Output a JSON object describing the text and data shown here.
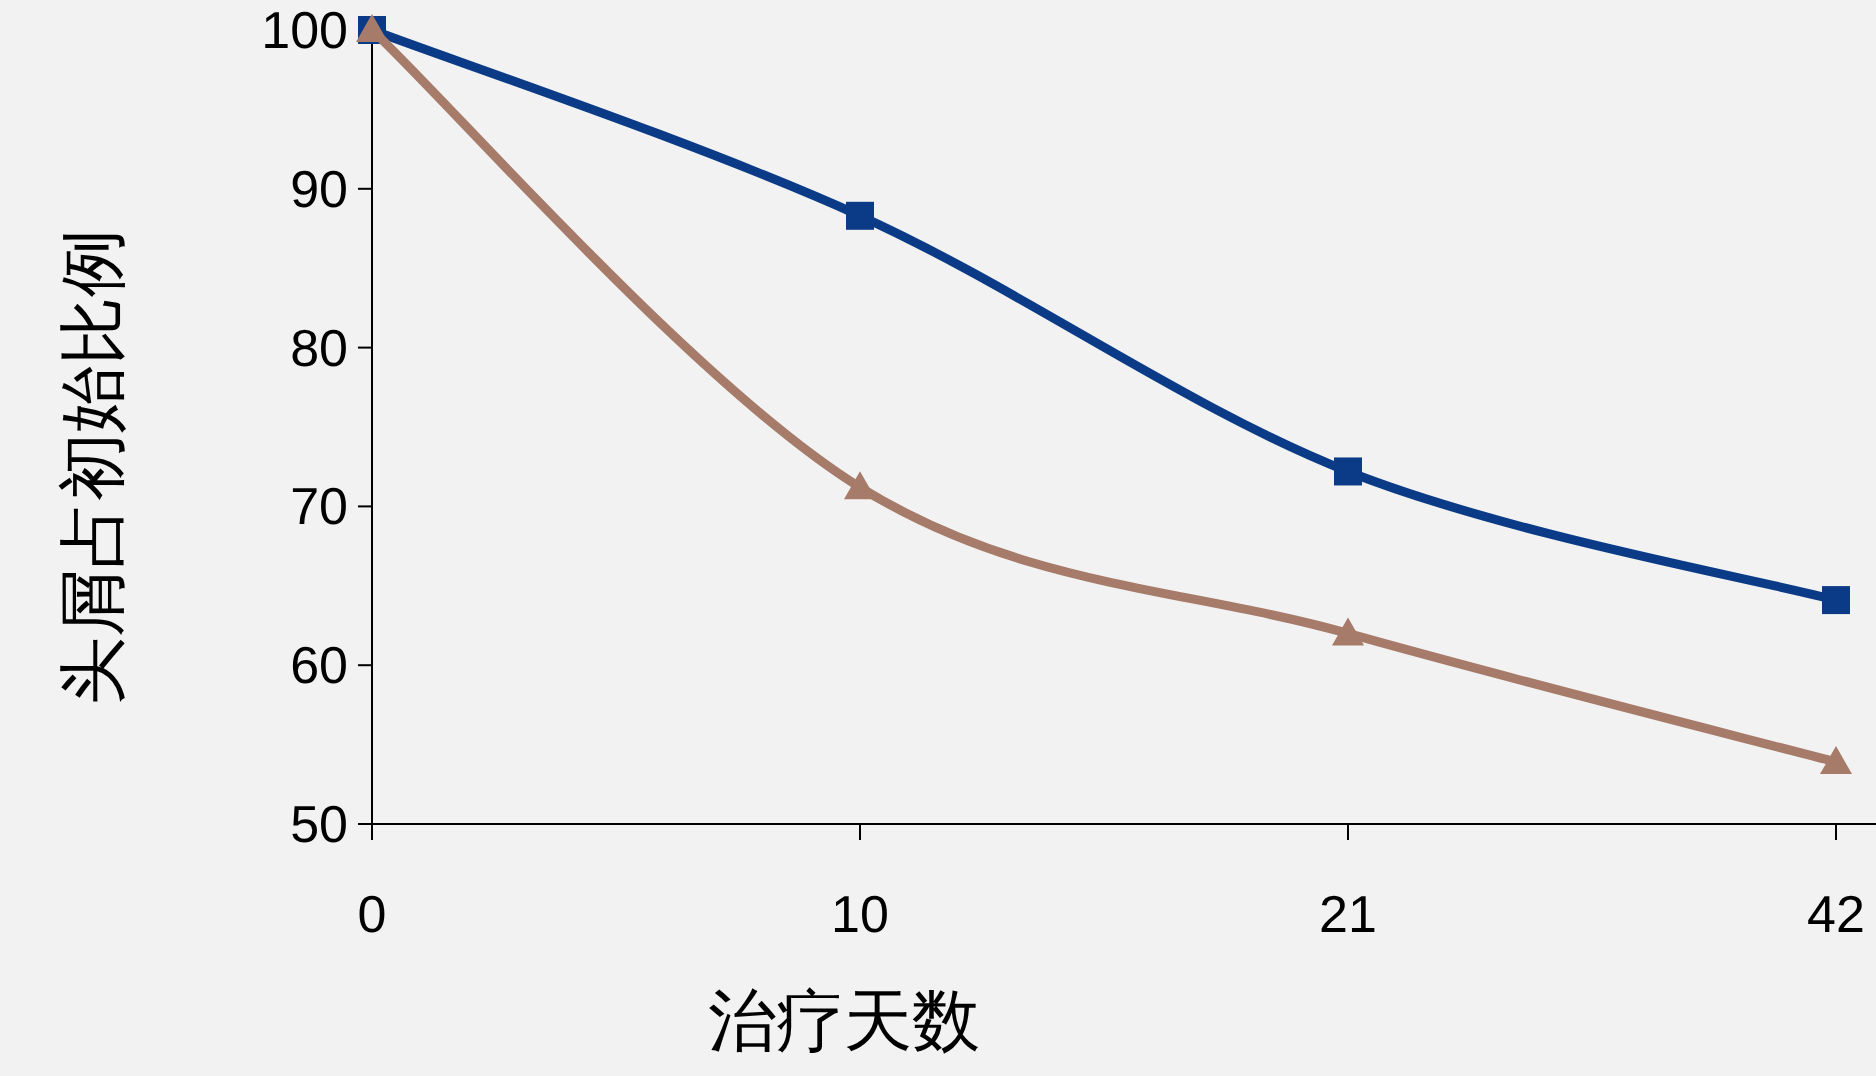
{
  "chart_data": {
    "type": "line",
    "xlabel": "治疗天数",
    "ylabel": "头屑占初始比例",
    "categories": [
      "0",
      "10",
      "21",
      "42"
    ],
    "ylim": [
      50,
      100
    ],
    "yticks": [
      50,
      60,
      70,
      80,
      90,
      100
    ],
    "grid": false,
    "series": [
      {
        "color": "#0b3b86",
        "marker": "square",
        "values": [
          100,
          88.3,
          72.2,
          64.1
        ]
      },
      {
        "color": "#a67b6a",
        "marker": "triangle",
        "values": [
          100,
          71.2,
          62,
          53.9
        ]
      }
    ]
  }
}
